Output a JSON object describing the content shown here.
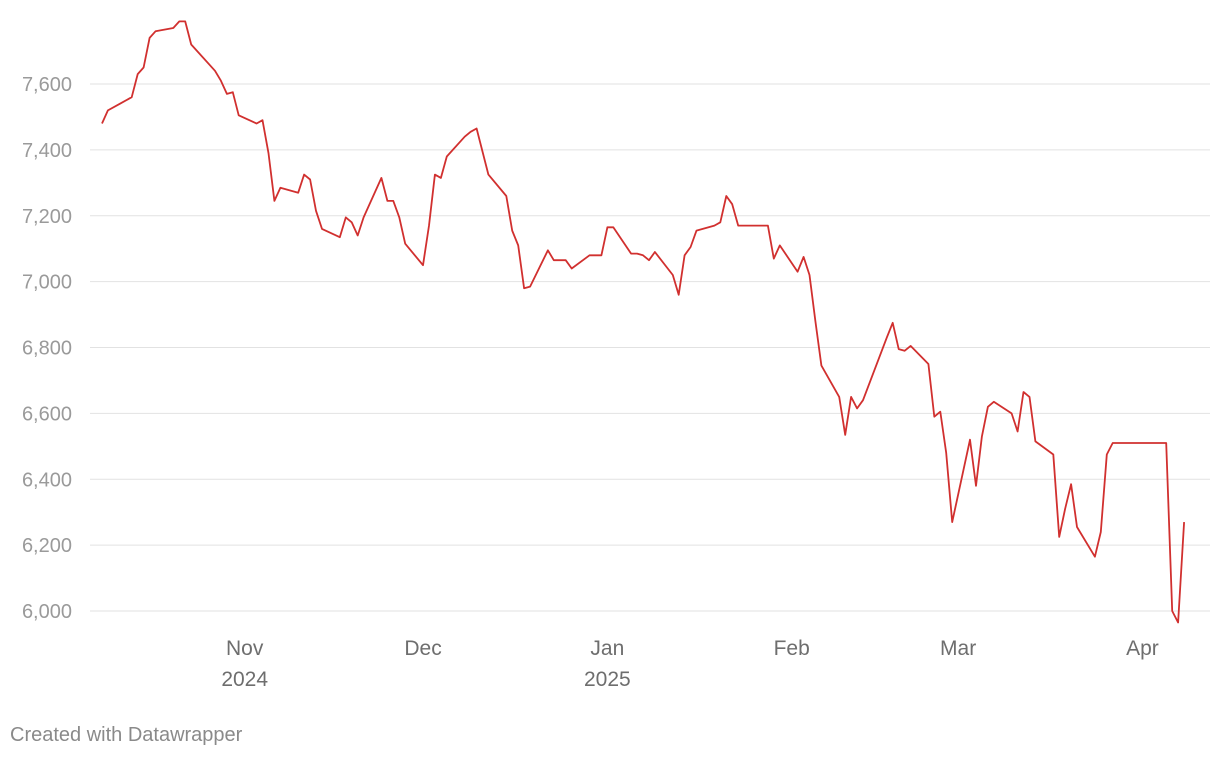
{
  "chart_data": {
    "type": "line",
    "title": "",
    "xlabel": "",
    "ylabel": "",
    "ylim": [
      5960,
      7800
    ],
    "xlim": [
      "2024-10-08",
      "2025-04-09"
    ],
    "grid": true,
    "yticks": [
      {
        "value": 6000,
        "label": "6,000"
      },
      {
        "value": 6200,
        "label": "6,200"
      },
      {
        "value": 6400,
        "label": "6,400"
      },
      {
        "value": 6600,
        "label": "6,600"
      },
      {
        "value": 6800,
        "label": "6,800"
      },
      {
        "value": 7000,
        "label": "7,000"
      },
      {
        "value": 7200,
        "label": "7,200"
      },
      {
        "value": 7400,
        "label": "7,400"
      },
      {
        "value": 7600,
        "label": "7,600"
      }
    ],
    "xticks": [
      {
        "date": "2024-11-01",
        "label": "Nov",
        "sublabel": "2024"
      },
      {
        "date": "2024-12-01",
        "label": "Dec",
        "sublabel": ""
      },
      {
        "date": "2025-01-01",
        "label": "Jan",
        "sublabel": "2025"
      },
      {
        "date": "2025-02-01",
        "label": "Feb",
        "sublabel": ""
      },
      {
        "date": "2025-03-01",
        "label": "Mar",
        "sublabel": ""
      },
      {
        "date": "2025-04-01",
        "label": "Apr",
        "sublabel": ""
      }
    ],
    "series": [
      {
        "color": "#d1302f",
        "points": [
          [
            "2024-10-08",
            7480
          ],
          [
            "2024-10-09",
            7520
          ],
          [
            "2024-10-11",
            7540
          ],
          [
            "2024-10-13",
            7560
          ],
          [
            "2024-10-14",
            7630
          ],
          [
            "2024-10-15",
            7650
          ],
          [
            "2024-10-16",
            7740
          ],
          [
            "2024-10-17",
            7760
          ],
          [
            "2024-10-20",
            7770
          ],
          [
            "2024-10-21",
            7790
          ],
          [
            "2024-10-22",
            7790
          ],
          [
            "2024-10-23",
            7720
          ],
          [
            "2024-10-27",
            7640
          ],
          [
            "2024-10-28",
            7610
          ],
          [
            "2024-10-29",
            7570
          ],
          [
            "2024-10-30",
            7575
          ],
          [
            "2024-10-31",
            7505
          ],
          [
            "2024-11-03",
            7480
          ],
          [
            "2024-11-04",
            7490
          ],
          [
            "2024-11-05",
            7390
          ],
          [
            "2024-11-06",
            7245
          ],
          [
            "2024-11-07",
            7285
          ],
          [
            "2024-11-10",
            7270
          ],
          [
            "2024-11-11",
            7325
          ],
          [
            "2024-11-12",
            7310
          ],
          [
            "2024-11-13",
            7215
          ],
          [
            "2024-11-14",
            7160
          ],
          [
            "2024-11-17",
            7135
          ],
          [
            "2024-11-18",
            7195
          ],
          [
            "2024-11-19",
            7180
          ],
          [
            "2024-11-20",
            7140
          ],
          [
            "2024-11-21",
            7195
          ],
          [
            "2024-11-24",
            7315
          ],
          [
            "2024-11-25",
            7245
          ],
          [
            "2024-11-26",
            7245
          ],
          [
            "2024-11-27",
            7195
          ],
          [
            "2024-11-28",
            7115
          ],
          [
            "2024-12-01",
            7050
          ],
          [
            "2024-12-02",
            7170
          ],
          [
            "2024-12-03",
            7325
          ],
          [
            "2024-12-04",
            7315
          ],
          [
            "2024-12-05",
            7380
          ],
          [
            "2024-12-08",
            7440
          ],
          [
            "2024-12-09",
            7455
          ],
          [
            "2024-12-10",
            7465
          ],
          [
            "2024-12-12",
            7325
          ],
          [
            "2024-12-15",
            7260
          ],
          [
            "2024-12-16",
            7155
          ],
          [
            "2024-12-17",
            7110
          ],
          [
            "2024-12-18",
            6980
          ],
          [
            "2024-12-19",
            6985
          ],
          [
            "2024-12-22",
            7095
          ],
          [
            "2024-12-23",
            7065
          ],
          [
            "2024-12-25",
            7065
          ],
          [
            "2024-12-26",
            7040
          ],
          [
            "2024-12-29",
            7080
          ],
          [
            "2024-12-31",
            7080
          ],
          [
            "2025-01-01",
            7165
          ],
          [
            "2025-01-02",
            7165
          ],
          [
            "2025-01-05",
            7085
          ],
          [
            "2025-01-06",
            7085
          ],
          [
            "2025-01-07",
            7080
          ],
          [
            "2025-01-08",
            7065
          ],
          [
            "2025-01-09",
            7090
          ],
          [
            "2025-01-12",
            7020
          ],
          [
            "2025-01-13",
            6960
          ],
          [
            "2025-01-14",
            7080
          ],
          [
            "2025-01-15",
            7105
          ],
          [
            "2025-01-16",
            7155
          ],
          [
            "2025-01-19",
            7170
          ],
          [
            "2025-01-20",
            7180
          ],
          [
            "2025-01-21",
            7260
          ],
          [
            "2025-01-22",
            7235
          ],
          [
            "2025-01-23",
            7170
          ],
          [
            "2025-01-28",
            7170
          ],
          [
            "2025-01-29",
            7070
          ],
          [
            "2025-01-30",
            7110
          ],
          [
            "2025-02-02",
            7030
          ],
          [
            "2025-02-03",
            7075
          ],
          [
            "2025-02-04",
            7020
          ],
          [
            "2025-02-05",
            6880
          ],
          [
            "2025-02-06",
            6745
          ],
          [
            "2025-02-09",
            6650
          ],
          [
            "2025-02-10",
            6535
          ],
          [
            "2025-02-11",
            6650
          ],
          [
            "2025-02-12",
            6615
          ],
          [
            "2025-02-13",
            6640
          ],
          [
            "2025-02-17",
            6830
          ],
          [
            "2025-02-18",
            6875
          ],
          [
            "2025-02-19",
            6795
          ],
          [
            "2025-02-20",
            6790
          ],
          [
            "2025-02-21",
            6805
          ],
          [
            "2025-02-24",
            6750
          ],
          [
            "2025-02-25",
            6590
          ],
          [
            "2025-02-26",
            6605
          ],
          [
            "2025-02-27",
            6480
          ],
          [
            "2025-02-28",
            6270
          ],
          [
            "2025-03-03",
            6520
          ],
          [
            "2025-03-04",
            6380
          ],
          [
            "2025-03-05",
            6530
          ],
          [
            "2025-03-06",
            6620
          ],
          [
            "2025-03-07",
            6635
          ],
          [
            "2025-03-10",
            6600
          ],
          [
            "2025-03-11",
            6545
          ],
          [
            "2025-03-12",
            6665
          ],
          [
            "2025-03-13",
            6650
          ],
          [
            "2025-03-14",
            6515
          ],
          [
            "2025-03-17",
            6475
          ],
          [
            "2025-03-18",
            6225
          ],
          [
            "2025-03-19",
            6310
          ],
          [
            "2025-03-20",
            6385
          ],
          [
            "2025-03-21",
            6255
          ],
          [
            "2025-03-24",
            6165
          ],
          [
            "2025-03-25",
            6240
          ],
          [
            "2025-03-26",
            6475
          ],
          [
            "2025-03-27",
            6510
          ],
          [
            "2025-04-05",
            6510
          ],
          [
            "2025-04-06",
            6000
          ],
          [
            "2025-04-07",
            5965
          ],
          [
            "2025-04-08",
            6270
          ]
        ]
      }
    ]
  },
  "footer": {
    "credit": "Created with Datawrapper"
  }
}
